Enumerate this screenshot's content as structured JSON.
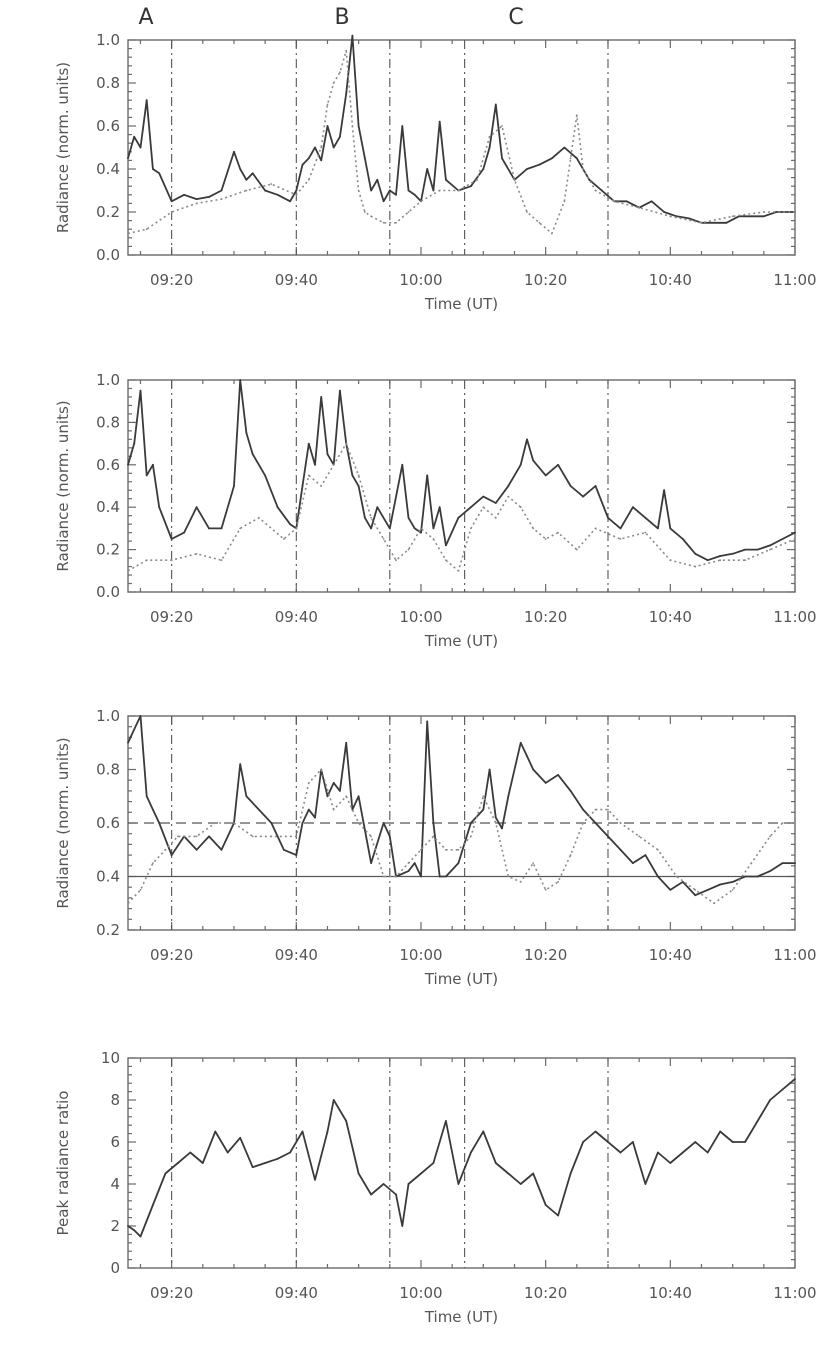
{
  "chart_data": [
    {
      "panel": 1,
      "type": "line",
      "xlabel": "Time (UT)",
      "ylabel": "Radiance (norm. units)",
      "ylim": [
        0.0,
        1.0
      ],
      "y_ticks": [
        "0.0",
        "0.2",
        "0.4",
        "0.6",
        "0.8",
        "1.0"
      ],
      "xlim": [
        "09:13",
        "11:00"
      ],
      "x_ticks": [
        "09:20",
        "09:40",
        "10:00",
        "10:20",
        "10:40",
        "11:00"
      ],
      "event_labels": [
        "A",
        "B",
        "C"
      ],
      "series": [
        {
          "style": "solid",
          "x": [
            "09:13",
            "09:14",
            "09:15",
            "09:16",
            "09:17",
            "09:18",
            "09:20",
            "09:22",
            "09:24",
            "09:26",
            "09:28",
            "09:30",
            "09:31",
            "09:32",
            "09:33",
            "09:35",
            "09:37",
            "09:39",
            "09:40",
            "09:41",
            "09:42",
            "09:43",
            "09:44",
            "09:45",
            "09:46",
            "09:47",
            "09:48",
            "09:49",
            "09:50",
            "09:51",
            "09:52",
            "09:53",
            "09:54",
            "09:55",
            "09:56",
            "09:57",
            "09:58",
            "09:59",
            "10:00",
            "10:01",
            "10:02",
            "10:03",
            "10:04",
            "10:06",
            "10:08",
            "10:10",
            "10:11",
            "10:12",
            "10:13",
            "10:15",
            "10:17",
            "10:19",
            "10:21",
            "10:23",
            "10:25",
            "10:27",
            "10:29",
            "10:31",
            "10:33",
            "10:35",
            "10:37",
            "10:39",
            "10:41",
            "10:43",
            "10:45",
            "10:47",
            "10:49",
            "10:51",
            "10:53",
            "10:55",
            "10:57",
            "10:59",
            "11:00"
          ],
          "y": [
            0.45,
            0.55,
            0.5,
            0.72,
            0.4,
            0.38,
            0.25,
            0.28,
            0.26,
            0.27,
            0.3,
            0.48,
            0.4,
            0.35,
            0.38,
            0.3,
            0.28,
            0.25,
            0.3,
            0.42,
            0.45,
            0.5,
            0.44,
            0.6,
            0.5,
            0.55,
            0.75,
            1.02,
            0.6,
            0.45,
            0.3,
            0.35,
            0.25,
            0.3,
            0.28,
            0.6,
            0.3,
            0.28,
            0.25,
            0.4,
            0.3,
            0.62,
            0.35,
            0.3,
            0.32,
            0.4,
            0.5,
            0.7,
            0.45,
            0.35,
            0.4,
            0.42,
            0.45,
            0.5,
            0.45,
            0.35,
            0.3,
            0.25,
            0.25,
            0.22,
            0.25,
            0.2,
            0.18,
            0.17,
            0.15,
            0.15,
            0.15,
            0.18,
            0.18,
            0.18,
            0.2,
            0.2,
            0.2
          ]
        },
        {
          "style": "dotted",
          "x": [
            "09:13",
            "09:16",
            "09:20",
            "09:24",
            "09:28",
            "09:32",
            "09:36",
            "09:40",
            "09:42",
            "09:44",
            "09:45",
            "09:46",
            "09:47",
            "09:48",
            "09:49",
            "09:50",
            "09:51",
            "09:52",
            "09:54",
            "09:56",
            "09:58",
            "10:00",
            "10:03",
            "10:06",
            "10:09",
            "10:11",
            "10:13",
            "10:15",
            "10:17",
            "10:19",
            "10:21",
            "10:23",
            "10:24",
            "10:25",
            "10:26",
            "10:28",
            "10:31",
            "10:35",
            "10:40",
            "10:45",
            "10:50",
            "10:55",
            "11:00"
          ],
          "y": [
            0.1,
            0.12,
            0.2,
            0.24,
            0.26,
            0.3,
            0.33,
            0.28,
            0.35,
            0.5,
            0.7,
            0.8,
            0.85,
            0.95,
            0.6,
            0.3,
            0.2,
            0.18,
            0.15,
            0.15,
            0.2,
            0.25,
            0.3,
            0.3,
            0.35,
            0.55,
            0.6,
            0.35,
            0.2,
            0.15,
            0.1,
            0.25,
            0.45,
            0.65,
            0.4,
            0.3,
            0.25,
            0.22,
            0.18,
            0.15,
            0.18,
            0.2,
            0.2
          ]
        }
      ]
    },
    {
      "panel": 2,
      "type": "line",
      "xlabel": "Time (UT)",
      "ylabel": "Radiance (norm. units)",
      "ylim": [
        0.0,
        1.0
      ],
      "y_ticks": [
        "0.0",
        "0.2",
        "0.4",
        "0.6",
        "0.8",
        "1.0"
      ],
      "xlim": [
        "09:13",
        "11:00"
      ],
      "x_ticks": [
        "09:20",
        "09:40",
        "10:00",
        "10:20",
        "10:40",
        "11:00"
      ],
      "series": [
        {
          "style": "solid",
          "x": [
            "09:13",
            "09:14",
            "09:15",
            "09:16",
            "09:17",
            "09:18",
            "09:20",
            "09:22",
            "09:24",
            "09:26",
            "09:28",
            "09:30",
            "09:31",
            "09:32",
            "09:33",
            "09:35",
            "09:37",
            "09:39",
            "09:40",
            "09:41",
            "09:42",
            "09:43",
            "09:44",
            "09:45",
            "09:46",
            "09:47",
            "09:48",
            "09:49",
            "09:50",
            "09:51",
            "09:52",
            "09:53",
            "09:55",
            "09:57",
            "09:58",
            "09:59",
            "10:00",
            "10:01",
            "10:02",
            "10:03",
            "10:04",
            "10:06",
            "10:08",
            "10:10",
            "10:12",
            "10:14",
            "10:16",
            "10:17",
            "10:18",
            "10:20",
            "10:22",
            "10:24",
            "10:26",
            "10:28",
            "10:30",
            "10:32",
            "10:34",
            "10:36",
            "10:38",
            "10:39",
            "10:40",
            "10:42",
            "10:44",
            "10:46",
            "10:48",
            "10:50",
            "10:52",
            "10:54",
            "10:56",
            "10:58",
            "11:00"
          ],
          "y": [
            0.6,
            0.7,
            0.95,
            0.55,
            0.6,
            0.4,
            0.25,
            0.28,
            0.4,
            0.3,
            0.3,
            0.5,
            1.0,
            0.75,
            0.65,
            0.55,
            0.4,
            0.32,
            0.3,
            0.5,
            0.7,
            0.6,
            0.92,
            0.65,
            0.6,
            0.95,
            0.7,
            0.55,
            0.5,
            0.35,
            0.3,
            0.4,
            0.3,
            0.6,
            0.35,
            0.3,
            0.28,
            0.55,
            0.3,
            0.4,
            0.22,
            0.35,
            0.4,
            0.45,
            0.42,
            0.5,
            0.6,
            0.72,
            0.62,
            0.55,
            0.6,
            0.5,
            0.45,
            0.5,
            0.35,
            0.3,
            0.4,
            0.35,
            0.3,
            0.48,
            0.3,
            0.25,
            0.18,
            0.15,
            0.17,
            0.18,
            0.2,
            0.2,
            0.22,
            0.25,
            0.28
          ]
        },
        {
          "style": "dotted",
          "x": [
            "09:13",
            "09:16",
            "09:20",
            "09:24",
            "09:28",
            "09:31",
            "09:34",
            "09:38",
            "09:40",
            "09:42",
            "09:44",
            "09:46",
            "09:48",
            "09:50",
            "09:52",
            "09:54",
            "09:56",
            "09:58",
            "10:00",
            "10:02",
            "10:04",
            "10:06",
            "10:08",
            "10:10",
            "10:12",
            "10:14",
            "10:16",
            "10:18",
            "10:20",
            "10:22",
            "10:25",
            "10:28",
            "10:32",
            "10:36",
            "10:40",
            "10:44",
            "10:48",
            "10:52",
            "10:56",
            "11:00"
          ],
          "y": [
            0.1,
            0.15,
            0.15,
            0.18,
            0.15,
            0.3,
            0.35,
            0.25,
            0.3,
            0.55,
            0.5,
            0.6,
            0.7,
            0.55,
            0.35,
            0.25,
            0.15,
            0.2,
            0.3,
            0.25,
            0.15,
            0.1,
            0.3,
            0.4,
            0.35,
            0.45,
            0.4,
            0.3,
            0.25,
            0.28,
            0.2,
            0.3,
            0.25,
            0.28,
            0.15,
            0.12,
            0.15,
            0.15,
            0.2,
            0.25
          ]
        }
      ]
    },
    {
      "panel": 3,
      "type": "line",
      "xlabel": "Time (UT)",
      "ylabel": "Radiance (norm. units)",
      "ylim": [
        0.2,
        1.0
      ],
      "y_ticks": [
        "0.2",
        "0.4",
        "0.6",
        "0.8",
        "1.0"
      ],
      "xlim": [
        "09:13",
        "11:00"
      ],
      "x_ticks": [
        "09:20",
        "09:40",
        "10:00",
        "10:20",
        "10:40",
        "11:00"
      ],
      "reference_lines": [
        {
          "y": 0.4,
          "style": "solid"
        },
        {
          "y": 0.6,
          "style": "dashed"
        }
      ],
      "series": [
        {
          "style": "solid",
          "x": [
            "09:13",
            "09:14",
            "09:15",
            "09:16",
            "09:17",
            "09:18",
            "09:20",
            "09:22",
            "09:24",
            "09:26",
            "09:28",
            "09:30",
            "09:31",
            "09:32",
            "09:34",
            "09:36",
            "09:38",
            "09:40",
            "09:41",
            "09:42",
            "09:43",
            "09:44",
            "09:45",
            "09:46",
            "09:47",
            "09:48",
            "09:49",
            "09:50",
            "09:52",
            "09:54",
            "09:55",
            "09:56",
            "09:58",
            "09:59",
            "10:00",
            "10:01",
            "10:02",
            "10:03",
            "10:04",
            "10:06",
            "10:08",
            "10:10",
            "10:11",
            "10:12",
            "10:13",
            "10:14",
            "10:16",
            "10:17",
            "10:18",
            "10:20",
            "10:22",
            "10:24",
            "10:26",
            "10:28",
            "10:30",
            "10:32",
            "10:34",
            "10:36",
            "10:38",
            "10:40",
            "10:42",
            "10:44",
            "10:46",
            "10:48",
            "10:50",
            "10:52",
            "10:54",
            "10:56",
            "10:58",
            "11:00"
          ],
          "y": [
            0.9,
            0.95,
            1.0,
            0.7,
            0.65,
            0.6,
            0.48,
            0.55,
            0.5,
            0.55,
            0.5,
            0.6,
            0.82,
            0.7,
            0.65,
            0.6,
            0.5,
            0.48,
            0.6,
            0.65,
            0.62,
            0.8,
            0.7,
            0.75,
            0.72,
            0.9,
            0.65,
            0.7,
            0.45,
            0.6,
            0.55,
            0.4,
            0.42,
            0.45,
            0.4,
            0.98,
            0.6,
            0.4,
            0.4,
            0.45,
            0.6,
            0.65,
            0.8,
            0.62,
            0.58,
            0.7,
            0.9,
            0.85,
            0.8,
            0.75,
            0.78,
            0.72,
            0.65,
            0.6,
            0.55,
            0.5,
            0.45,
            0.48,
            0.4,
            0.35,
            0.38,
            0.33,
            0.35,
            0.37,
            0.38,
            0.4,
            0.4,
            0.42,
            0.45,
            0.45
          ]
        },
        {
          "style": "dotted",
          "x": [
            "09:13",
            "09:15",
            "09:17",
            "09:19",
            "09:21",
            "09:24",
            "09:27",
            "09:30",
            "09:33",
            "09:36",
            "09:40",
            "09:42",
            "09:44",
            "09:46",
            "09:48",
            "09:50",
            "09:52",
            "09:54",
            "09:56",
            "09:58",
            "10:00",
            "10:02",
            "10:04",
            "10:06",
            "10:08",
            "10:10",
            "10:12",
            "10:14",
            "10:16",
            "10:18",
            "10:20",
            "10:22",
            "10:24",
            "10:26",
            "10:28",
            "10:30",
            "10:32",
            "10:35",
            "10:38",
            "10:41",
            "10:44",
            "10:47",
            "10:50",
            "10:53",
            "10:56",
            "10:58",
            "11:00"
          ],
          "y": [
            0.3,
            0.35,
            0.45,
            0.5,
            0.55,
            0.55,
            0.6,
            0.6,
            0.55,
            0.55,
            0.55,
            0.75,
            0.8,
            0.65,
            0.7,
            0.6,
            0.55,
            0.4,
            0.4,
            0.45,
            0.5,
            0.55,
            0.5,
            0.5,
            0.55,
            0.7,
            0.6,
            0.4,
            0.38,
            0.45,
            0.35,
            0.38,
            0.48,
            0.6,
            0.65,
            0.65,
            0.6,
            0.55,
            0.5,
            0.4,
            0.35,
            0.3,
            0.35,
            0.45,
            0.55,
            0.6,
            0.6
          ]
        }
      ]
    },
    {
      "panel": 4,
      "type": "line",
      "xlabel": "Time (UT)",
      "ylabel": "Peak radiance ratio",
      "ylim": [
        0,
        10
      ],
      "y_ticks": [
        "0",
        "2",
        "4",
        "6",
        "8",
        "10"
      ],
      "xlim": [
        "09:13",
        "11:00"
      ],
      "x_ticks": [
        "09:20",
        "09:40",
        "10:00",
        "10:20",
        "10:40",
        "11:00"
      ],
      "series": [
        {
          "style": "solid",
          "x": [
            "09:13",
            "09:14",
            "09:15",
            "09:17",
            "09:19",
            "09:21",
            "09:23",
            "09:25",
            "09:27",
            "09:29",
            "09:31",
            "09:33",
            "09:35",
            "09:37",
            "09:39",
            "09:41",
            "09:43",
            "09:45",
            "09:46",
            "09:48",
            "09:50",
            "09:52",
            "09:54",
            "09:56",
            "09:57",
            "09:58",
            "10:00",
            "10:02",
            "10:04",
            "10:06",
            "10:08",
            "10:10",
            "10:12",
            "10:14",
            "10:16",
            "10:18",
            "10:20",
            "10:22",
            "10:24",
            "10:26",
            "10:28",
            "10:30",
            "10:32",
            "10:34",
            "10:36",
            "10:38",
            "10:40",
            "10:42",
            "10:44",
            "10:46",
            "10:48",
            "10:50",
            "10:52",
            "10:54",
            "10:56",
            "10:58",
            "11:00"
          ],
          "y": [
            2,
            1.8,
            1.5,
            3,
            4.5,
            5,
            5.5,
            5,
            6.5,
            5.5,
            6.2,
            4.8,
            5,
            5.2,
            5.5,
            6.5,
            4.2,
            6.5,
            8,
            7,
            4.5,
            3.5,
            4,
            3.5,
            2,
            4,
            4.5,
            5,
            7,
            4,
            5.5,
            6.5,
            5,
            4.5,
            4,
            4.5,
            3,
            2.5,
            4.5,
            6,
            6.5,
            6,
            5.5,
            6,
            4,
            5.5,
            5,
            5.5,
            6,
            5.5,
            6.5,
            6,
            6,
            7,
            8,
            8.5,
            9
          ]
        }
      ]
    }
  ]
}
